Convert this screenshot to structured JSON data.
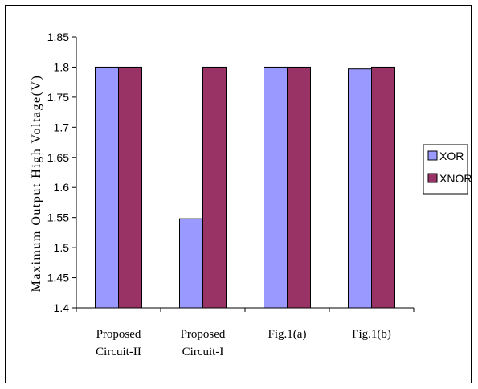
{
  "chart_data": {
    "type": "bar",
    "title": "",
    "xlabel": "",
    "ylabel": "Maximum Output High Voltage(V)",
    "categories": [
      [
        "Proposed",
        "Circuit-II"
      ],
      [
        "Proposed",
        "Circuit-I"
      ],
      [
        "Fig.1(a)"
      ],
      [
        "Fig.1(b)"
      ]
    ],
    "series": [
      {
        "name": "XOR",
        "color": "#9999FF",
        "values": [
          1.8,
          1.548,
          1.8,
          1.797
        ]
      },
      {
        "name": "XNOR",
        "color": "#993366",
        "values": [
          1.8,
          1.8,
          1.8,
          1.8
        ]
      }
    ],
    "ylim": [
      1.4,
      1.85
    ],
    "yticks": [
      "1.4",
      "1.45",
      "1.5",
      "1.55",
      "1.6",
      "1.65",
      "1.7",
      "1.75",
      "1.8",
      "1.85"
    ],
    "grid": false,
    "legend_position": "right"
  }
}
